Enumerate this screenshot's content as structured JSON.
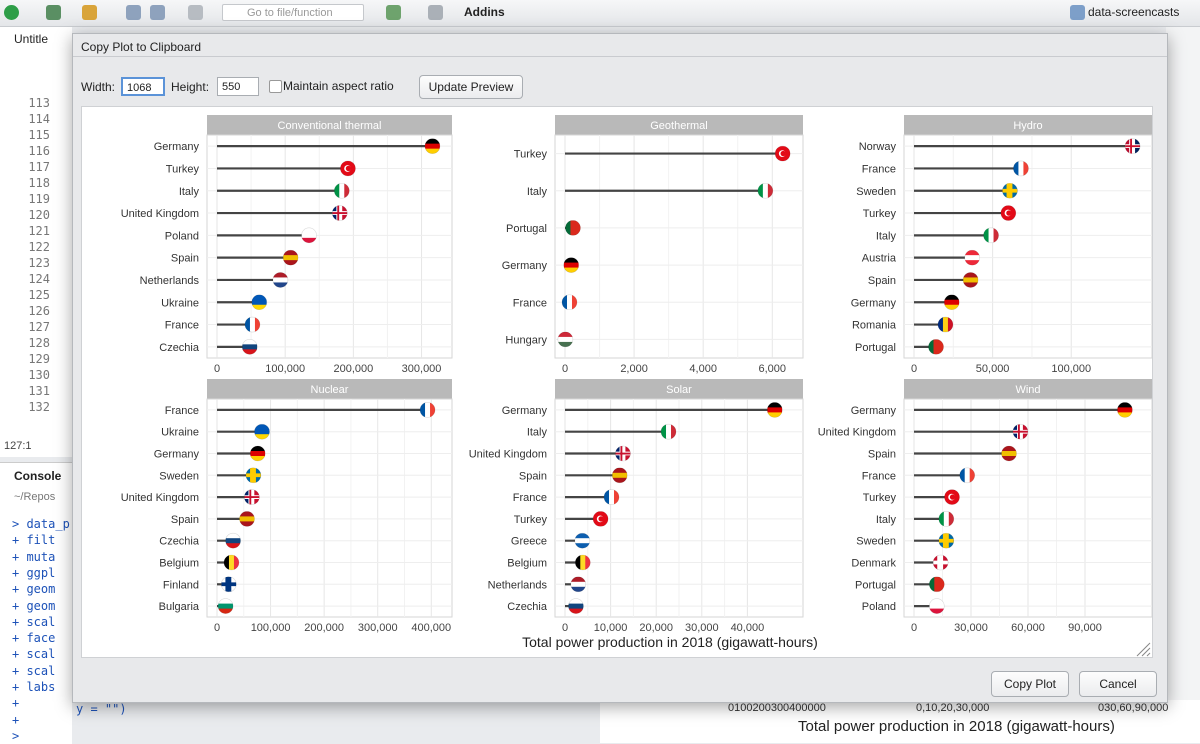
{
  "toolbar": {
    "goto_placeholder": "Go to file/function",
    "addins": "Addins",
    "project": "data-screencasts"
  },
  "editor": {
    "tab": "Untitle",
    "lines": [
      "113",
      "114",
      "115",
      "116",
      "117",
      "118",
      "119",
      "120",
      "121",
      "122",
      "123",
      "124",
      "125",
      "126",
      "127",
      "128",
      "129",
      "130",
      "131",
      "132"
    ],
    "position": "127:1"
  },
  "console": {
    "title": "Console",
    "path": "~/Repos",
    "lines": [
      "> data_p",
      "+   filt",
      "+   muta",
      "+   ggpl",
      "+   geom",
      "+   geom",
      "+   scal",
      "+   face",
      "+   scal",
      "+   scal",
      "+   labs",
      "+",
      "+",
      "> "
    ],
    "tail": "y = \"\")"
  },
  "background": {
    "xlabel": "Total power production in 2018 (gigawatt-hours)",
    "ticks": "0100200300400000",
    "ticks2": "0,10,20,30,000",
    "ticks3": "030,60,90,000"
  },
  "dialog": {
    "title": "Copy Plot to Clipboard",
    "width_label": "Width:",
    "width_value": "1068",
    "height_label": "Height:",
    "height_value": "550",
    "aspect_label": "Maintain aspect ratio",
    "update_button": "Update Preview",
    "copy_button": "Copy Plot",
    "cancel_button": "Cancel"
  },
  "chart_data": {
    "type": "bar",
    "subtype": "lollipop faceted",
    "xlabel": "Total power production in 2018 (gigawatt-hours)",
    "ylabel": "",
    "grid": true,
    "facets": [
      {
        "title": "Conventional thermal",
        "xlim": [
          0,
          330000
        ],
        "ticks": [
          0,
          100000,
          200000,
          300000
        ],
        "tick_labels": [
          "0",
          "100,000",
          "200,000",
          "300,000"
        ],
        "categories": [
          "Germany",
          "Turkey",
          "Italy",
          "United Kingdom",
          "Poland",
          "Spain",
          "Netherlands",
          "Ukraine",
          "France",
          "Czechia"
        ],
        "values": [
          316000,
          192000,
          183000,
          180000,
          135000,
          108000,
          93000,
          62000,
          52000,
          48000
        ],
        "flags": [
          "de",
          "tr",
          "it",
          "gb",
          "pl",
          "es",
          "nl",
          "ua",
          "fr",
          "cz"
        ]
      },
      {
        "title": "Geothermal",
        "xlim": [
          0,
          6600
        ],
        "ticks": [
          0,
          2000,
          4000,
          6000
        ],
        "tick_labels": [
          "0",
          "2,000",
          "4,000",
          "6,000"
        ],
        "categories": [
          "Turkey",
          "Italy",
          "Portugal",
          "Germany",
          "France",
          "Hungary"
        ],
        "values": [
          6300,
          5800,
          230,
          180,
          130,
          10
        ],
        "flags": [
          "tr",
          "it",
          "pt",
          "de",
          "fr",
          "hu"
        ]
      },
      {
        "title": "Hydro",
        "xlim": [
          0,
          145000
        ],
        "ticks": [
          0,
          50000,
          100000
        ],
        "tick_labels": [
          "0",
          "50,000",
          "100,000"
        ],
        "categories": [
          "Norway",
          "France",
          "Sweden",
          "Turkey",
          "Italy",
          "Austria",
          "Spain",
          "Germany",
          "Romania",
          "Portugal"
        ],
        "values": [
          139000,
          68000,
          61000,
          60000,
          49000,
          37000,
          36000,
          24000,
          20000,
          14000
        ],
        "flags": [
          "no",
          "fr",
          "se",
          "tr",
          "it",
          "at",
          "es",
          "de",
          "ro",
          "pt"
        ]
      },
      {
        "title": "Nuclear",
        "xlim": [
          0,
          420000
        ],
        "ticks": [
          0,
          100000,
          200000,
          300000,
          400000
        ],
        "tick_labels": [
          "0",
          "100,000",
          "200,000",
          "300,000",
          "400,000"
        ],
        "categories": [
          "France",
          "Ukraine",
          "Germany",
          "Sweden",
          "United Kingdom",
          "Spain",
          "Czechia",
          "Belgium",
          "Finland",
          "Bulgaria"
        ],
        "values": [
          393000,
          84000,
          76000,
          68000,
          65000,
          56000,
          30000,
          27000,
          22000,
          16000
        ],
        "flags": [
          "fr",
          "ua",
          "de",
          "se",
          "gb",
          "es",
          "cz",
          "be",
          "fi",
          "bg"
        ]
      },
      {
        "title": "Solar",
        "xlim": [
          0,
          50000
        ],
        "ticks": [
          0,
          10000,
          20000,
          30000,
          40000
        ],
        "tick_labels": [
          "0",
          "10,000",
          "20,000",
          "30,000",
          "40,000"
        ],
        "categories": [
          "Germany",
          "Italy",
          "United Kingdom",
          "Spain",
          "France",
          "Turkey",
          "Greece",
          "Belgium",
          "Netherlands",
          "Czechia"
        ],
        "values": [
          46000,
          22700,
          12700,
          12000,
          10200,
          7800,
          3800,
          3900,
          2900,
          2400
        ],
        "flags": [
          "de",
          "it",
          "gb",
          "es",
          "fr",
          "tr",
          "gr",
          "be",
          "nl",
          "cz"
        ]
      },
      {
        "title": "Wind",
        "xlim": [
          0,
          120000
        ],
        "ticks": [
          0,
          30000,
          60000,
          90000
        ],
        "tick_labels": [
          "0",
          "30,000",
          "60,000",
          "90,000"
        ],
        "categories": [
          "Germany",
          "United Kingdom",
          "Spain",
          "France",
          "Turkey",
          "Italy",
          "Sweden",
          "Denmark",
          "Portugal",
          "Poland"
        ],
        "values": [
          111000,
          56000,
          50000,
          28000,
          20000,
          17000,
          17000,
          14000,
          12000,
          12000
        ],
        "flags": [
          "de",
          "gb",
          "es",
          "fr",
          "tr",
          "it",
          "se",
          "dk",
          "pt",
          "pl"
        ]
      }
    ]
  },
  "colors": {
    "strip": "#b9b9b9",
    "panel_bg": "#ebebeb",
    "stem": "#444444",
    "accent": "#3c7fd6"
  }
}
